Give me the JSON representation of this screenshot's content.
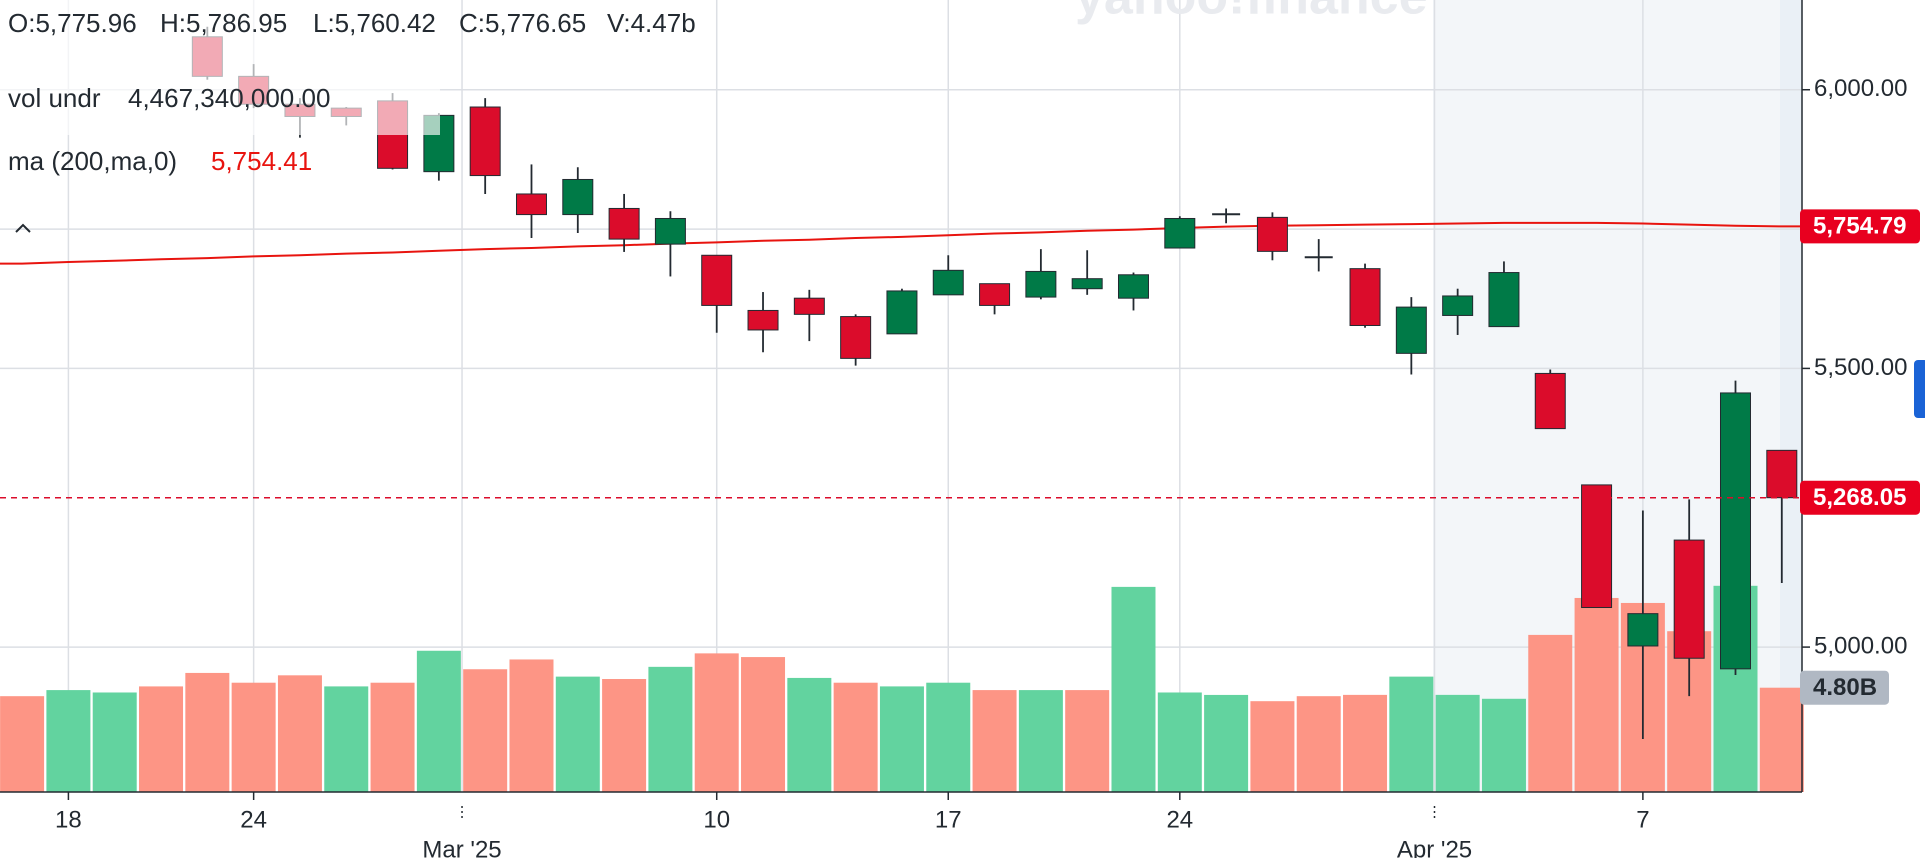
{
  "chart_data": {
    "type": "candlestick",
    "watermark": "yahoo!finance",
    "legend": {
      "open": "O:5,775.96",
      "high": "H:5,786.95",
      "low": "L:5,760.42",
      "close": "C:5,776.65",
      "volume": "V:4.47b",
      "vol_name": "vol undr",
      "vol_value": "4,467,340,000.00",
      "ma_name": "ma (200,ma,0)",
      "ma_value": "5,754.41"
    },
    "categories": [
      null,
      "18",
      null,
      null,
      null,
      "24",
      null,
      null,
      null,
      null,
      null,
      null,
      null,
      null,
      null,
      "10",
      null,
      null,
      null,
      null,
      "17",
      null,
      null,
      null,
      null,
      "24",
      null,
      null,
      null,
      null,
      null,
      null,
      null,
      null,
      null,
      "7",
      null,
      null,
      null
    ],
    "month_labels": [
      {
        "label": "Mar '25",
        "at": 9.5
      },
      {
        "label": "Apr '25",
        "at": 30.5
      }
    ],
    "ohlc": {
      "up_color": "#007a47",
      "down_color": "#db0c2b",
      "open": [
        null,
        null,
        null,
        null,
        6095,
        6024,
        5974,
        5967,
        5980,
        5853,
        5969,
        5813,
        5776,
        5787,
        5723,
        5703,
        5604,
        5626,
        5593,
        5562,
        5632,
        5652,
        5628,
        5643,
        5626,
        5716,
        5775.96,
        5771,
        5699.5,
        5679,
        5527,
        5595,
        5575,
        5491,
        5291,
        5002,
        5192,
        4961,
        5353
      ],
      "high": [
        null,
        null,
        null,
        null,
        6113,
        6046,
        5985,
        5969,
        5994,
        5958,
        5985,
        5866,
        5861,
        5813,
        5782,
        5703,
        5637,
        5641,
        5597,
        5643,
        5703,
        5652,
        5714,
        5712,
        5672,
        5773,
        5786.95,
        5780,
        5732,
        5688,
        5628,
        5643,
        5692,
        5498,
        5291,
        5245,
        5265,
        5478,
        5353
      ],
      "low": [
        null,
        null,
        null,
        null,
        6018,
        5967,
        5914,
        5936,
        5857,
        5837,
        5813,
        5734,
        5743,
        5709,
        5665,
        5564,
        5529,
        5549,
        5505,
        5562,
        5632,
        5597,
        5624,
        5632,
        5604,
        5716,
        5760.42,
        5694,
        5674,
        5573,
        5489,
        5560,
        5575,
        5392,
        5071,
        4835,
        4912,
        4950,
        5115
      ],
      "close": [
        null,
        null,
        null,
        null,
        6024,
        5974,
        5952,
        5952,
        5859,
        5954,
        5846,
        5776,
        5839,
        5732,
        5769,
        5613,
        5569,
        5597,
        5518,
        5639,
        5676,
        5613,
        5674,
        5661,
        5668,
        5769,
        5776.65,
        5710,
        5698.8,
        5577,
        5610,
        5630,
        5672,
        5392,
        5071,
        5060,
        4980,
        5456,
        5268.05
      ]
    },
    "ma": {
      "name": "ma (200,ma,0)",
      "color": "#e8140f",
      "values": [
        5688,
        5691,
        5693,
        5696,
        5698,
        5701,
        5703,
        5706,
        5708,
        5711,
        5714,
        5716,
        5719,
        5721,
        5724,
        5726,
        5729,
        5731,
        5734,
        5736,
        5739,
        5742,
        5744,
        5747,
        5749,
        5752,
        5754.41,
        5756,
        5757,
        5758,
        5759,
        5760,
        5761,
        5761,
        5761,
        5760,
        5758,
        5756,
        5754.79
      ],
      "last_value_label": "5,754.79"
    },
    "last_price": {
      "value": 5268.05,
      "label": "5,268.05"
    },
    "ylim": [
      4740,
      6161
    ],
    "yticks": [
      {
        "value": 5000,
        "label": "5,000.00"
      },
      {
        "value": 5500,
        "label": "5,500.00"
      },
      {
        "value": 6000,
        "label": "6,000.00"
      }
    ],
    "minor_yticks": [
      5750
    ],
    "grid": true,
    "volume": {
      "up_color": "#62d39f",
      "down_color": "#fd9585",
      "values": [
        4410000000,
        4690000000,
        4580000000,
        4860000000,
        5480000000,
        5030000000,
        5370000000,
        4860000000,
        5030000000,
        6500000000,
        5650000000,
        6100000000,
        5310000000,
        5200000000,
        5760000000,
        6380000000,
        6210000000,
        5250000000,
        5030000000,
        4860000000,
        5030000000,
        4690000000,
        4690000000,
        4690000000,
        9440000000,
        4580000000,
        4467340000,
        4180000000,
        4410000000,
        4470000000,
        5310000000,
        4470000000,
        4290000000,
        7230000000,
        8930000000,
        8700000000,
        7400000000,
        9490000000,
        4800000000
      ],
      "directions": [
        "down",
        "up",
        "up",
        "down",
        "down",
        "down",
        "down",
        "up",
        "down",
        "up",
        "down",
        "down",
        "up",
        "down",
        "up",
        "down",
        "down",
        "up",
        "down",
        "up",
        "up",
        "down",
        "up",
        "down",
        "up",
        "up",
        "up",
        "down",
        "down",
        "down",
        "up",
        "up",
        "up",
        "down",
        "down",
        "down",
        "down",
        "up",
        "down"
      ],
      "ylim": [
        0,
        36450000000
      ],
      "last_value_label": "4.80B"
    }
  }
}
